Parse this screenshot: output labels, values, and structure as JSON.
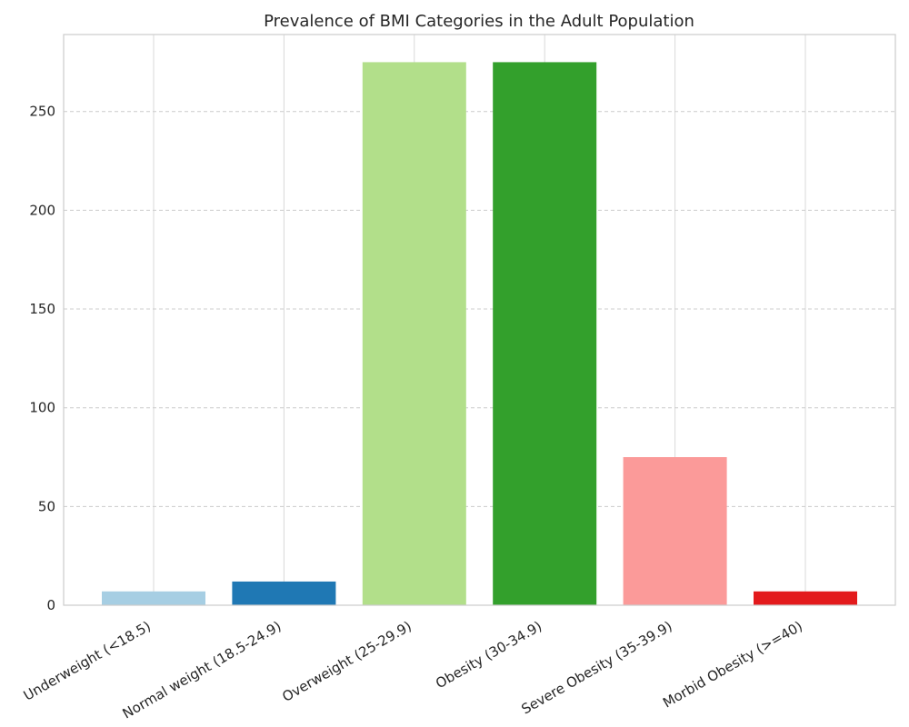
{
  "chart_data": {
    "type": "bar",
    "title": "Prevalence of BMI Categories in the Adult Population",
    "xlabel": "",
    "ylabel": "",
    "categories": [
      "Underweight (<18.5)",
      "Normal weight (18.5-24.9)",
      "Overweight (25-29.9)",
      "Obesity (30-34.9)",
      "Severe Obesity (35-39.9)",
      "Morbid Obesity (>=40)"
    ],
    "values": [
      7,
      12,
      275,
      275,
      75,
      7
    ],
    "colors": [
      "#a6cee3",
      "#1f78b4",
      "#b2df8a",
      "#33a02c",
      "#fb9a99",
      "#e31a1c"
    ],
    "ylim": [
      0,
      289
    ],
    "yticks": [
      0,
      50,
      100,
      150,
      200,
      250
    ],
    "grid": true,
    "legend": "none"
  }
}
